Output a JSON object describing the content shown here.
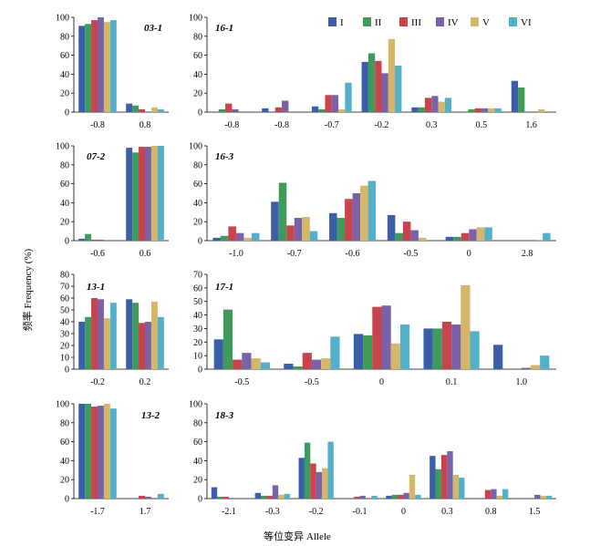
{
  "figure": {
    "ylabel": "频率 Frequency (%)",
    "xlabel": "等位变异 Allele"
  },
  "colors": [
    "#3a5ea8",
    "#3f9a5c",
    "#c8434b",
    "#7a62a8",
    "#d6b76a",
    "#54afc9"
  ],
  "chart_data": [
    {
      "type": "bar",
      "title": "03-1",
      "ylim": [
        0,
        100
      ],
      "yticks": [
        0,
        20,
        40,
        60,
        80,
        100
      ],
      "legend": "top-right",
      "series_names": [
        "I",
        "II",
        "III",
        "IV",
        "V",
        "VI"
      ],
      "categories": [
        "-0.8",
        "0.8"
      ],
      "values": [
        [
          91,
          93,
          97,
          100,
          95,
          97
        ],
        [
          9,
          7,
          3,
          0,
          5,
          3
        ]
      ]
    },
    {
      "type": "bar",
      "title": "16-1",
      "ylim": [
        0,
        100
      ],
      "yticks": [
        0,
        20,
        40,
        60,
        80,
        100
      ],
      "categories": [
        "-0.8",
        "-0.8",
        "-0.7",
        "-0.2",
        "0.3",
        "0.5",
        "1.6"
      ],
      "values": [
        [
          0,
          3,
          9,
          3,
          0,
          0
        ],
        [
          4,
          0,
          5,
          12,
          0,
          0
        ],
        [
          6,
          3,
          18,
          18,
          3,
          31
        ],
        [
          53,
          62,
          54,
          41,
          77,
          49
        ],
        [
          5,
          5,
          15,
          17,
          11,
          15
        ],
        [
          0,
          3,
          4,
          4,
          4,
          4
        ],
        [
          33,
          26,
          0,
          0,
          3,
          0
        ]
      ]
    },
    {
      "type": "bar",
      "title": "07-2",
      "ylim": [
        0,
        100
      ],
      "yticks": [
        0,
        20,
        40,
        60,
        80,
        100
      ],
      "categories": [
        "-0.6",
        "0.6"
      ],
      "values": [
        [
          2,
          7,
          1,
          1,
          0,
          0
        ],
        [
          98,
          93,
          99,
          99,
          100,
          100
        ]
      ]
    },
    {
      "type": "bar",
      "title": "16-3",
      "ylim": [
        0,
        100
      ],
      "yticks": [
        0,
        20,
        40,
        60,
        80,
        100
      ],
      "categories": [
        "-1.0",
        "-0.7",
        "-0.6",
        "-0.5",
        "0",
        "2.8"
      ],
      "values": [
        [
          3,
          5,
          15,
          8,
          3,
          8
        ],
        [
          41,
          61,
          16,
          24,
          25,
          10
        ],
        [
          29,
          24,
          44,
          50,
          58,
          63
        ],
        [
          27,
          8,
          20,
          11,
          3,
          0
        ],
        [
          4,
          4,
          8,
          12,
          14,
          14
        ],
        [
          0,
          0,
          0,
          0,
          1,
          8
        ]
      ]
    },
    {
      "type": "bar",
      "title": "13-1",
      "ylim": [
        0,
        80
      ],
      "yticks": [
        0,
        10,
        20,
        30,
        40,
        50,
        60,
        70,
        80
      ],
      "categories": [
        "-0.2",
        "0.2"
      ],
      "values": [
        [
          40,
          44,
          60,
          59,
          43,
          56
        ],
        [
          59,
          56,
          39,
          40,
          57,
          44
        ]
      ]
    },
    {
      "type": "bar",
      "title": "17-1",
      "ylim": [
        0,
        70
      ],
      "yticks": [
        0,
        10,
        20,
        30,
        40,
        50,
        60,
        70
      ],
      "categories": [
        "-0.5",
        "-0.5",
        "0",
        "0.1",
        "1.0"
      ],
      "values": [
        [
          22,
          44,
          7,
          12,
          8,
          5
        ],
        [
          4,
          2,
          12,
          7,
          8,
          24
        ],
        [
          26,
          25,
          46,
          47,
          19,
          33
        ],
        [
          30,
          30,
          35,
          33,
          62,
          28
        ],
        [
          18,
          0,
          0,
          1,
          3,
          10
        ]
      ]
    },
    {
      "type": "bar",
      "title": "13-2",
      "ylim": [
        0,
        100
      ],
      "yticks": [
        0,
        20,
        40,
        60,
        80,
        100
      ],
      "categories": [
        "-1.7",
        "1.7"
      ],
      "values": [
        [
          100,
          100,
          97,
          98,
          100,
          95
        ],
        [
          0,
          0,
          3,
          2,
          0,
          5
        ]
      ]
    },
    {
      "type": "bar",
      "title": "18-3",
      "ylim": [
        0,
        100
      ],
      "yticks": [
        0,
        20,
        40,
        60,
        80,
        100
      ],
      "categories": [
        "-2.1",
        "-0.3",
        "-0.2",
        "-0.1",
        "0",
        "0.3",
        "0.8",
        "1.5"
      ],
      "values": [
        [
          12,
          2,
          2,
          0,
          0,
          0
        ],
        [
          6,
          3,
          3,
          14,
          4,
          5
        ],
        [
          43,
          59,
          37,
          28,
          32,
          60
        ],
        [
          0,
          0,
          2,
          3,
          0,
          3
        ],
        [
          3,
          4,
          4,
          6,
          25,
          4
        ],
        [
          45,
          31,
          46,
          50,
          25,
          22
        ],
        [
          0,
          0,
          9,
          10,
          3,
          10
        ],
        [
          0,
          0,
          0,
          4,
          3,
          3
        ]
      ]
    }
  ]
}
